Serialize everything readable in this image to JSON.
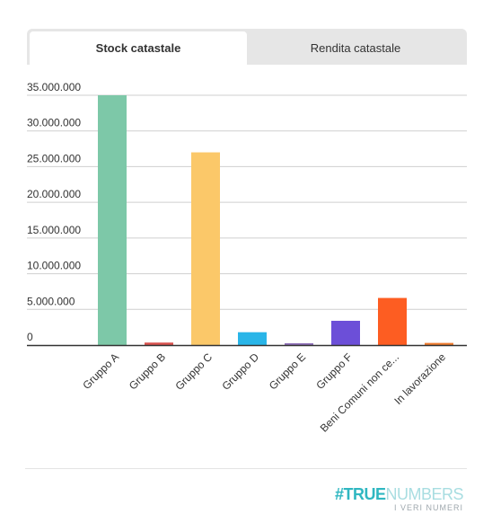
{
  "tabs": [
    {
      "label": "Stock catastale",
      "active": true
    },
    {
      "label": "Rendita catastale",
      "active": false
    }
  ],
  "brand": {
    "hash": "#",
    "word1": "TRUE",
    "word2": "NUMBERS",
    "tagline": "I VERI NUMERI"
  },
  "chart_data": {
    "type": "bar",
    "title": "",
    "xlabel": "",
    "ylabel": "",
    "ylim": [
      0,
      35000000
    ],
    "yticks": [
      "0",
      "5.000.000",
      "10.000.000",
      "15.000.000",
      "20.000.000",
      "25.000.000",
      "30.000.000",
      "35.000.000"
    ],
    "grid": true,
    "categories": [
      "Gruppo A",
      "Gruppo B",
      "Gruppo C",
      "Gruppo D",
      "Gruppo E",
      "Gruppo F",
      "Beni Comuni non ce...",
      "In lavorazione"
    ],
    "values": [
      35000000,
      350000,
      27000000,
      1800000,
      150000,
      3400000,
      6600000,
      300000
    ],
    "colors": [
      "#7dc8a8",
      "#d9534f",
      "#fbc869",
      "#29b5e8",
      "#8e6fb8",
      "#6c4fd8",
      "#fd5d22",
      "#f07c2f"
    ]
  }
}
